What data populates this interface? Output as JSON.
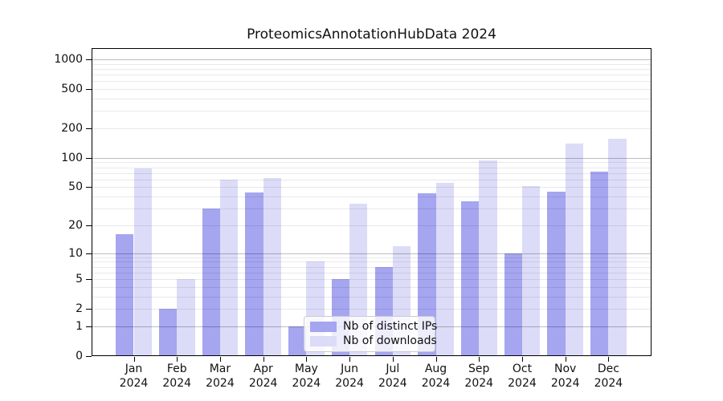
{
  "chart_data": {
    "type": "bar",
    "title": "ProteomicsAnnotationHubData 2024",
    "categories": [
      "Jan",
      "Feb",
      "Mar",
      "Apr",
      "May",
      "Jun",
      "Jul",
      "Aug",
      "Sep",
      "Oct",
      "Nov",
      "Dec"
    ],
    "year_label": "2024",
    "series": [
      {
        "name": "Nb of distinct IPs",
        "color": "#a5a5f0",
        "values": [
          16,
          2,
          30,
          44,
          1,
          5,
          7,
          43,
          36,
          10,
          45,
          72
        ]
      },
      {
        "name": "Nb of downloads",
        "color": "#dcdcf8",
        "values": [
          78,
          5,
          60,
          62,
          8,
          34,
          12,
          55,
          95,
          51,
          140,
          158
        ]
      }
    ],
    "y_ticks": [
      0,
      1,
      2,
      5,
      10,
      20,
      50,
      100,
      200,
      500,
      1000
    ],
    "y_scale": "log10(1+v)",
    "ylim": [
      0,
      1400
    ],
    "xlabel": "",
    "ylabel": "",
    "grid": "horizontal, minor log subdivisions",
    "legend_position": "lower center",
    "colors": {
      "major_grid": "#bdbdbd",
      "minor_grid": "#e8e8e8",
      "spine": "#000000",
      "text": "#111111",
      "background": "#ffffff"
    }
  }
}
